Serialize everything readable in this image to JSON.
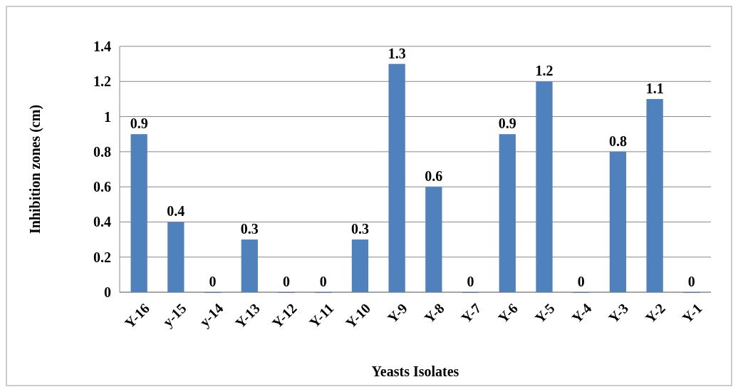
{
  "chart_data": {
    "type": "bar",
    "xlabel": "Yeasts Isolates",
    "ylabel": "Inhibition zones (cm)",
    "categories": [
      "Y-16",
      "y-15",
      "y-14",
      "Y-13",
      "Y-12",
      "Y-11",
      "Y-10",
      "Y-9",
      "Y-8",
      "Y-7",
      "Y-6",
      "Y-5",
      "Y-4",
      "Y-3",
      "Y-2",
      "Y-1"
    ],
    "values": [
      0.9,
      0.4,
      0,
      0.3,
      0,
      0,
      0.3,
      1.3,
      0.6,
      0,
      0.9,
      1.2,
      0,
      0.8,
      1.1,
      0
    ],
    "color": "#4f81bd",
    "ylim": [
      0,
      1.4
    ],
    "yticks": [
      0,
      0.2,
      0.4,
      0.6,
      0.8,
      1,
      1.2,
      1.4
    ],
    "grid": "y",
    "data_labels": true
  }
}
